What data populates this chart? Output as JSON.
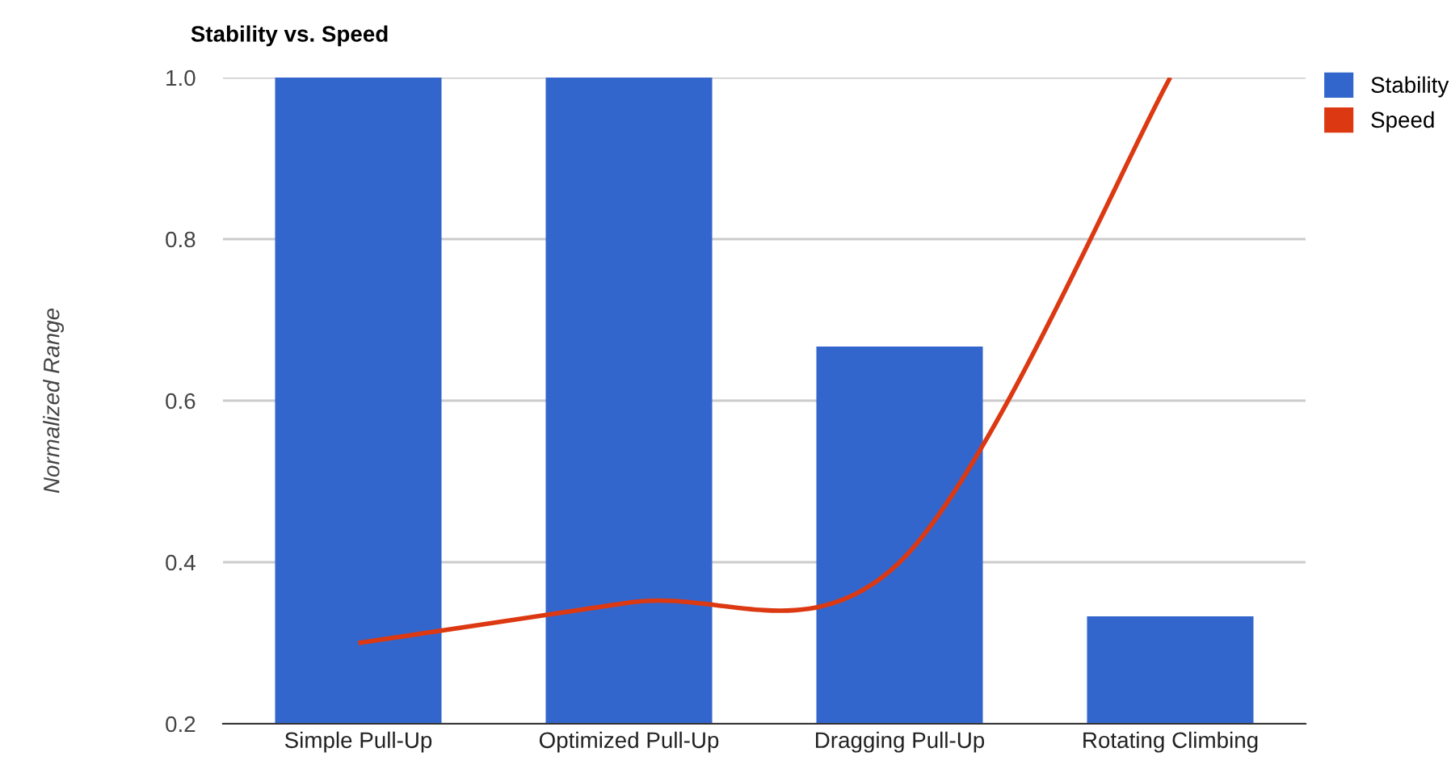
{
  "chart_data": {
    "type": "bar",
    "title": "Stability vs. Speed",
    "ylabel": "Normalized Range",
    "categories": [
      "Simple Pull-Up",
      "Optimized Pull-Up",
      "Dragging Pull-Up",
      "Rotating Climbing"
    ],
    "series": [
      {
        "name": "Stability",
        "color": "#3366cc",
        "values": [
          1.0,
          1.0,
          0.667,
          0.333
        ]
      },
      {
        "name": "Speed",
        "color": "#dc3912",
        "type": "line",
        "values": [
          0.3,
          0.35,
          0.4,
          1.0
        ]
      }
    ],
    "ylim": [
      0.2,
      1.0
    ],
    "yticks": [
      {
        "value": 0.2,
        "label": "0.2"
      },
      {
        "value": 0.4,
        "label": "0.4"
      },
      {
        "value": 0.6,
        "label": "0.6"
      },
      {
        "value": 0.8,
        "label": "0.8"
      },
      {
        "value": 1.0,
        "label": "1.0"
      }
    ],
    "grid": "y",
    "legend": "top right"
  }
}
